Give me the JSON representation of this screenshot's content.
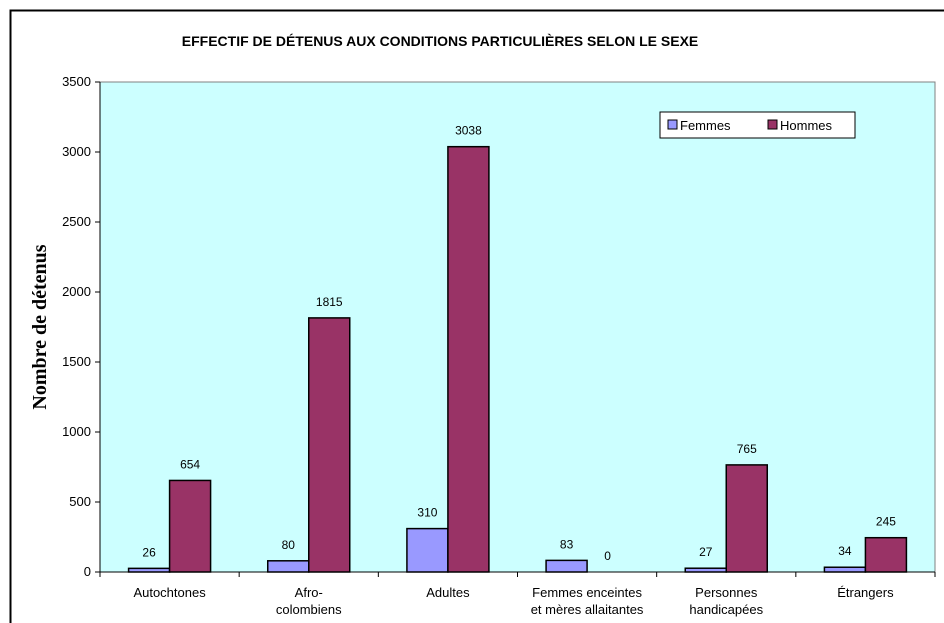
{
  "chart_data": {
    "type": "bar",
    "title": "EFFECTIF DE DÉTENUS AUX CONDITIONS PARTICULIÈRES SELON LE SEXE",
    "y_label": "Nombre de détenus",
    "categories": [
      [
        "Autochtones"
      ],
      [
        "Afro-",
        "colombiens"
      ],
      [
        "Adultes"
      ],
      [
        "Femmes enceintes",
        "et mères allaitantes"
      ],
      [
        "Personnes",
        "handicapées"
      ],
      [
        "Étrangers"
      ]
    ],
    "series": [
      {
        "name": "Femmes",
        "color": "#9999ff",
        "values": [
          26,
          80,
          310,
          83,
          27,
          34
        ]
      },
      {
        "name": "Hommes",
        "color": "#993366",
        "values": [
          654,
          1815,
          3038,
          0,
          765,
          245
        ]
      }
    ],
    "ylim": [
      0,
      3500
    ],
    "yticks": [
      0,
      500,
      1000,
      1500,
      2000,
      2500,
      3000,
      3500
    ],
    "legend": "upper right",
    "plot_background": "#ccffff"
  }
}
